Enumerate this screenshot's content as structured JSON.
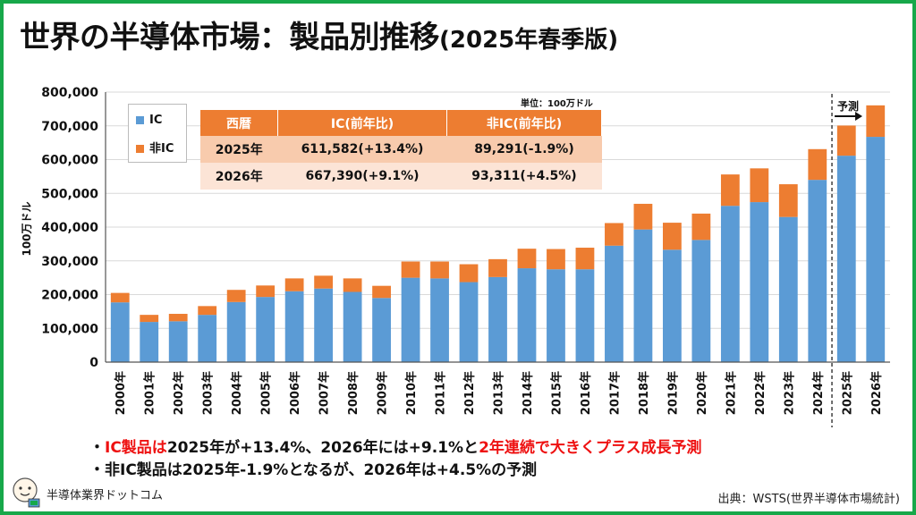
{
  "title": {
    "main": "世界の半導体市場：製品別推移",
    "sub": "(2025年春季版)"
  },
  "colors": {
    "ic": "#5b9bd5",
    "non_ic": "#ed7d31",
    "frame": "#17a84a",
    "highlight": "#ee1111"
  },
  "chart_data": {
    "type": "bar",
    "stacked": true,
    "ylabel": "100万ドル",
    "ylim": [
      0,
      800000
    ],
    "yticks": [
      "0",
      "100,000",
      "200,000",
      "300,000",
      "400,000",
      "500,000",
      "600,000",
      "700,000",
      "800,000"
    ],
    "categories": [
      "2000年",
      "2001年",
      "2002年",
      "2003年",
      "2004年",
      "2005年",
      "2006年",
      "2007年",
      "2008年",
      "2009年",
      "2010年",
      "2011年",
      "2012年",
      "2013年",
      "2014年",
      "2015年",
      "2016年",
      "2017年",
      "2018年",
      "2019年",
      "2020年",
      "2021年",
      "2022年",
      "2023年",
      "2024年",
      "2025年",
      "2026年"
    ],
    "series": [
      {
        "name": "IC",
        "values": [
          177000,
          119000,
          121000,
          140000,
          178000,
          193000,
          210000,
          218000,
          208000,
          190000,
          250000,
          248000,
          237000,
          252000,
          278000,
          275000,
          275000,
          345000,
          393000,
          333000,
          362000,
          463000,
          474000,
          430000,
          540000,
          611582,
          667390
        ]
      },
      {
        "name": "非IC",
        "values": [
          28000,
          21000,
          22000,
          26000,
          36000,
          34000,
          38000,
          38000,
          40000,
          36000,
          48000,
          50000,
          53000,
          53000,
          58000,
          60000,
          64000,
          67000,
          76000,
          80000,
          78000,
          93000,
          100000,
          97000,
          91000,
          89291,
          93311
        ]
      }
    ],
    "forecast_label": "予測",
    "legend_position": "top-left"
  },
  "table": {
    "unit": "単位：100万ドル",
    "headers": [
      "西暦",
      "IC(前年比)",
      "非IC(前年比)"
    ],
    "rows": [
      [
        "2025年",
        "611,582(+13.4%)",
        "89,291(-1.9%)"
      ],
      [
        "2026年",
        "667,390(+9.1%)",
        "93,311(+4.5%)"
      ]
    ]
  },
  "notes": {
    "n1_a": "・",
    "n1_b": "IC製品は",
    "n1_c": "2025年が+13.4%、2026年には+9.1%と",
    "n1_d": "2年連続で大きくプラス成長予測",
    "n2": "・非IC製品は2025年-1.9%となるが、2026年は+4.5%の予測"
  },
  "footer": {
    "brand": "半導体業界ドットコム",
    "source": "出典：WSTS(世界半導体市場統計)"
  }
}
